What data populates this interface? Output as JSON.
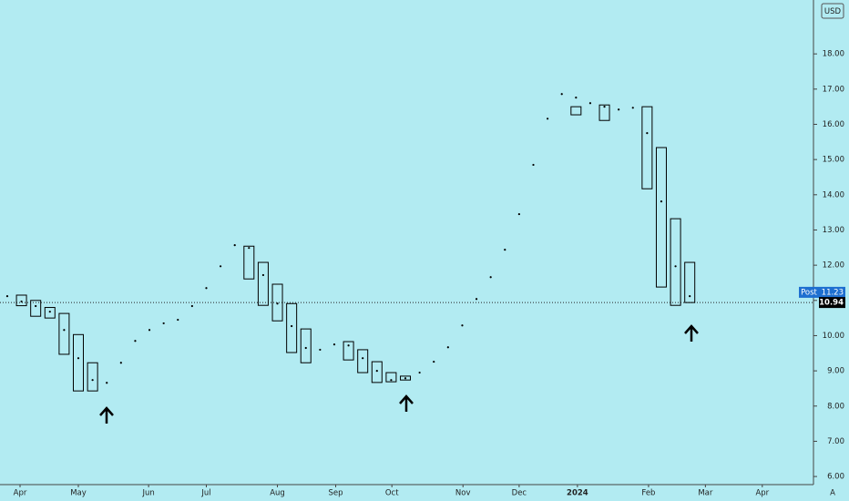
{
  "chart_data": {
    "type": "dotbox",
    "currency": "USD",
    "scale_mode": "A",
    "post_label": "Post",
    "post_price": 11.23,
    "last_price": 10.94,
    "last_price_label": "10.94",
    "post_price_label": "11.23",
    "dots": {
      "x": [
        0,
        1,
        2,
        3,
        4,
        5,
        6,
        7,
        8,
        9,
        10,
        11,
        12,
        13,
        14,
        15,
        16,
        17,
        18,
        19,
        20,
        21,
        22,
        23,
        24,
        25,
        26,
        27,
        28,
        29,
        30,
        31,
        32,
        33,
        34,
        35,
        36,
        37,
        38,
        39,
        40,
        41,
        42,
        43,
        44,
        45,
        46,
        47,
        48
      ],
      "values": [
        11.12,
        10.97,
        10.84,
        10.68,
        10.16,
        9.36,
        8.74,
        8.66,
        9.23,
        9.85,
        10.16,
        10.35,
        10.45,
        10.84,
        11.35,
        11.97,
        12.57,
        12.49,
        11.72,
        10.91,
        10.27,
        9.65,
        9.6,
        9.75,
        9.72,
        9.36,
        9.0,
        8.74,
        8.79,
        8.95,
        9.26,
        9.67,
        10.29,
        11.04,
        11.66,
        12.44,
        13.45,
        14.85,
        16.16,
        16.86,
        16.76,
        16.6,
        16.5,
        16.42,
        16.47,
        15.75,
        13.81,
        11.97,
        11.12
      ]
    },
    "boxes": {
      "x": [
        1,
        2,
        3,
        4,
        5,
        6,
        17,
        18,
        19,
        20,
        21,
        24,
        25,
        26,
        27,
        28,
        40,
        42,
        45,
        46,
        47,
        48
      ],
      "top": [
        11.15,
        11.0,
        10.8,
        10.63,
        10.03,
        9.23,
        12.54,
        12.08,
        11.46,
        10.91,
        10.19,
        9.83,
        9.6,
        9.26,
        8.95,
        8.85,
        16.5,
        16.55,
        16.5,
        15.34,
        13.32,
        12.08
      ],
      "bottom": [
        10.85,
        10.55,
        10.5,
        9.47,
        8.43,
        8.43,
        11.61,
        10.86,
        10.42,
        9.52,
        9.23,
        9.31,
        8.95,
        8.67,
        8.69,
        8.74,
        16.27,
        16.11,
        14.17,
        11.38,
        10.86,
        10.94
      ]
    },
    "xlim": [
      -0.51,
      56.7
    ],
    "xticks": [
      {
        "value": 0.9,
        "label": "Apr"
      },
      {
        "value": 5.0,
        "label": "May"
      },
      {
        "value": 9.94,
        "label": "Jun"
      },
      {
        "value": 14.0,
        "label": "Jul"
      },
      {
        "value": 19.0,
        "label": "Aug"
      },
      {
        "value": 23.1,
        "label": "Sep"
      },
      {
        "value": 27.05,
        "label": "Oct"
      },
      {
        "value": 32.05,
        "label": "Nov"
      },
      {
        "value": 36.0,
        "label": "Dec"
      },
      {
        "value": 40.1,
        "label": "2024"
      },
      {
        "value": 45.1,
        "label": "Feb"
      },
      {
        "value": 49.1,
        "label": "Mar"
      },
      {
        "value": 53.1,
        "label": "Apr"
      }
    ],
    "ylim": [
      5.77,
      19.53
    ],
    "yticks": [
      {
        "value": 6,
        "label": "6.00"
      },
      {
        "value": 7,
        "label": "7.00"
      },
      {
        "value": 8,
        "label": "8.00"
      },
      {
        "value": 9,
        "label": "9.00"
      },
      {
        "value": 10,
        "label": "10.00"
      },
      {
        "value": 11,
        "label": "11.00"
      },
      {
        "value": 12,
        "label": "12.00"
      },
      {
        "value": 13,
        "label": "13.00"
      },
      {
        "value": 14,
        "label": "14.00"
      },
      {
        "value": 15,
        "label": "15.00"
      },
      {
        "value": 16,
        "label": "16.00"
      },
      {
        "value": 17,
        "label": "17.00"
      },
      {
        "value": 18,
        "label": "18.00"
      }
    ],
    "color": "#000000",
    "background": "#b2ebf2"
  }
}
